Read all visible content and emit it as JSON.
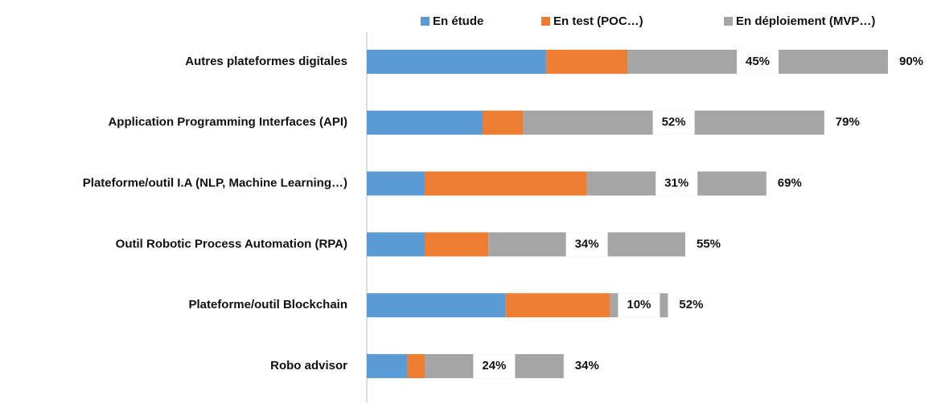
{
  "chart_data": {
    "type": "stacked_bar_horizontal",
    "categories": [
      "Autres plateformes digitales",
      "Application Programming Interfaces (API)",
      "Plateforme/outil I.A (NLP, Machine Learning…)",
      "Outil Robotic Process Automation (RPA)",
      "Plateforme/outil Blockchain",
      "Robo advisor"
    ],
    "series": [
      {
        "name": "En étude",
        "color": "#5b9bd5",
        "values": [
          31,
          20,
          10,
          10,
          24,
          7
        ]
      },
      {
        "name": "En test (POC…)",
        "color": "#ed7d31",
        "values": [
          14,
          7,
          28,
          11,
          18,
          3
        ]
      },
      {
        "name": "En déploiement (MVP…)",
        "color": "#a5a5a5",
        "values": [
          45,
          52,
          31,
          34,
          10,
          24
        ],
        "value_labels": [
          "45%",
          "52%",
          "31%",
          "34%",
          "10%",
          "24%"
        ]
      }
    ],
    "totals": [
      90,
      79,
      69,
      55,
      52,
      34
    ],
    "total_labels": [
      "90%",
      "79%",
      "69%",
      "55%",
      "52%",
      "34%"
    ],
    "legend": "top"
  }
}
